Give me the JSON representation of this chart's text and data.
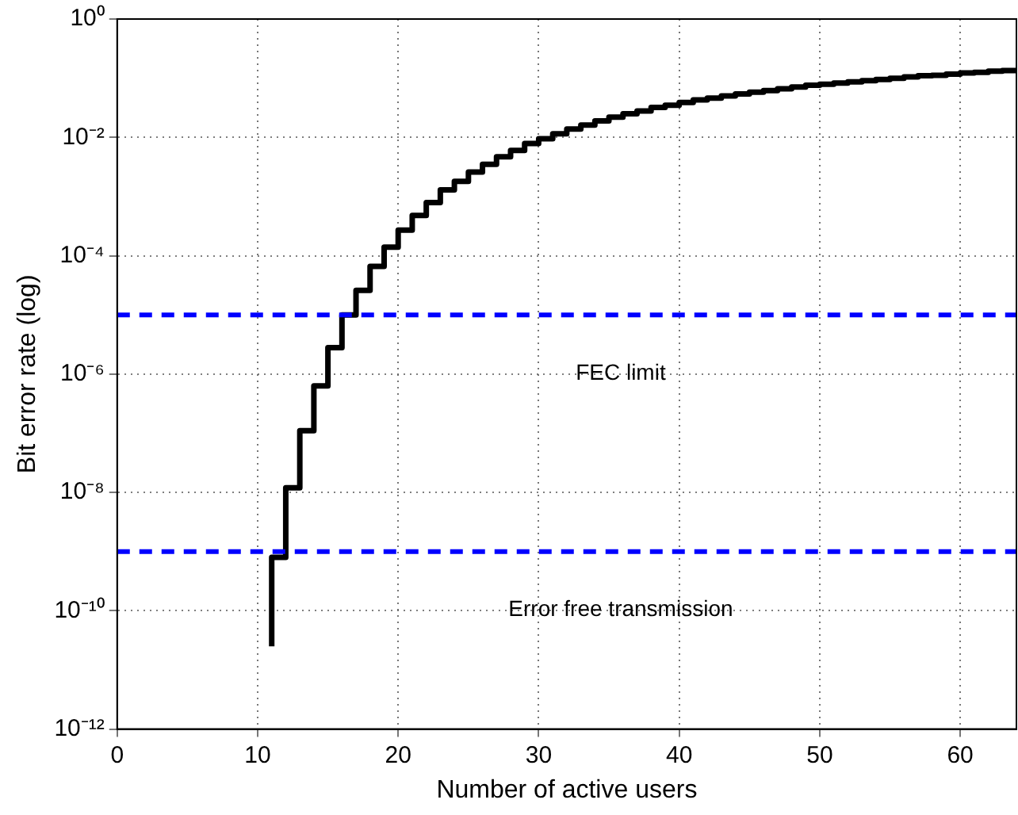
{
  "chart_data": {
    "type": "step",
    "xlabel": "Number of active users",
    "ylabel": "Bit error rate (log)",
    "x": [
      11,
      12,
      13,
      14,
      15,
      16,
      17,
      18,
      19,
      20,
      21,
      22,
      23,
      24,
      25,
      26,
      27,
      28,
      29,
      30,
      31,
      32,
      33,
      34,
      35,
      36,
      37,
      38,
      39,
      40,
      41,
      42,
      43,
      44,
      45,
      46,
      47,
      48,
      49,
      50,
      51,
      52,
      53,
      54,
      55,
      56,
      57,
      58,
      59,
      60,
      61,
      62,
      63,
      64
    ],
    "series": [
      {
        "color": "#000000",
        "values": [
          2.5e-11,
          8e-10,
          1.2e-08,
          1.1e-07,
          6.3e-07,
          2.8e-06,
          1e-05,
          2.6e-05,
          6.6e-05,
          0.00014,
          0.00027,
          0.00048,
          0.00079,
          0.0013,
          0.0018,
          0.0026,
          0.0035,
          0.0047,
          0.006,
          0.0079,
          0.0095,
          0.0115,
          0.0138,
          0.0162,
          0.019,
          0.022,
          0.025,
          0.028,
          0.032,
          0.035,
          0.039,
          0.043,
          0.046,
          0.05,
          0.054,
          0.058,
          0.062,
          0.066,
          0.071,
          0.076,
          0.079,
          0.083,
          0.087,
          0.091,
          0.095,
          0.1,
          0.105,
          0.11,
          0.112,
          0.117,
          0.123,
          0.126,
          0.132,
          0.135
        ]
      }
    ],
    "xlim": [
      0,
      64
    ],
    "xticks": [
      0,
      10,
      20,
      30,
      40,
      50,
      60
    ],
    "ylim": [
      1e-12,
      1
    ],
    "yticks": [
      {
        "value": 1e-12,
        "label": "10⁻¹²"
      },
      {
        "value": 1e-10,
        "label": "10⁻¹⁰"
      },
      {
        "value": 1e-08,
        "label": "10⁻⁸"
      },
      {
        "value": 1e-06,
        "label": "10⁻⁶"
      },
      {
        "value": 0.0001,
        "label": "10⁻⁴"
      },
      {
        "value": 0.01,
        "label": "10⁻²"
      },
      {
        "value": 1,
        "label": "10⁰"
      }
    ],
    "log": "y",
    "grid": true,
    "legend": false,
    "line_style": "solid",
    "marker": "none",
    "ref_lines": [
      {
        "axis": "y",
        "value": 1e-05,
        "label": "FEC limit",
        "color": "#0000ff",
        "line_style": "dashed"
      },
      {
        "axis": "y",
        "value": 1e-09,
        "label": "Error free transmission",
        "color": "#0000ff",
        "line_style": "dashed"
      }
    ]
  }
}
